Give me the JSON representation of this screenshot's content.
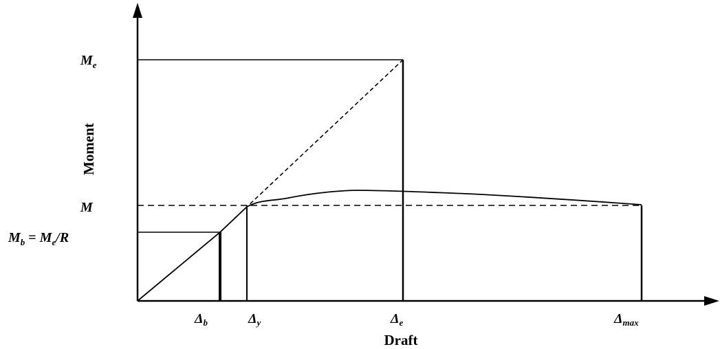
{
  "y_axis": {
    "title": "Moment",
    "labels": {
      "me": {
        "base": "M",
        "sub": "e"
      },
      "m": {
        "base": "M"
      },
      "mb": {
        "base": "M",
        "sub": "b",
        "eq": " = ",
        "rhs_base": "M",
        "rhs_sub": "e",
        "rhs_tail": "/R"
      }
    }
  },
  "x_axis": {
    "title": "Draft",
    "labels": {
      "delta_b": {
        "base": "Δ",
        "sub": "b"
      },
      "delta_y": {
        "base": "Δ",
        "sub": "y"
      },
      "delta_e": {
        "base": "Δ",
        "sub": "e"
      },
      "delta_max": {
        "base": "Δ",
        "sub": "max"
      }
    }
  },
  "colors": {
    "line": "#000000",
    "background": "#ffffff"
  }
}
